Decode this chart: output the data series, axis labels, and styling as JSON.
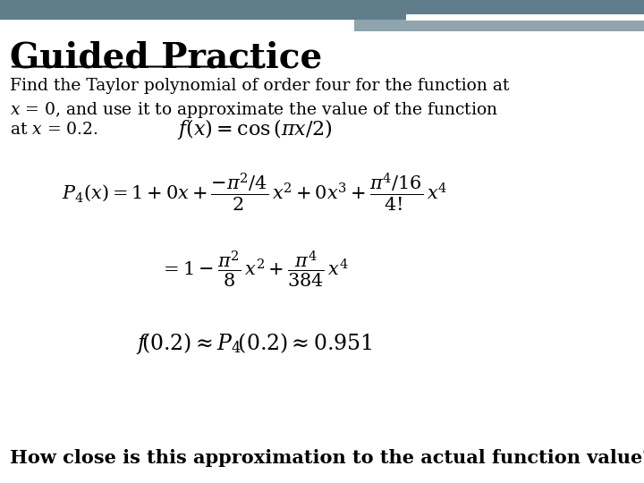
{
  "bg_color": "#ffffff",
  "header_bar_color": "#607d8b",
  "header_bar2_color": "#90a4ae",
  "title": "Guided Practice",
  "title_color": "#000000",
  "title_fontsize": 28,
  "body_color": "#000000",
  "intro_line1": "Find the Taylor polynomial of order four for the function at",
  "intro_line2": "$x$ = 0, and use it to approximate the value of the function",
  "intro_line3": "at $x$ = 0.2.",
  "footer_text": "How close is this approximation to the actual function value?",
  "footer_fontsize": 15,
  "intro_fontsize": 13.5,
  "eq_fontsize": 15,
  "func_fontsize": 16,
  "approx_fontsize": 17
}
